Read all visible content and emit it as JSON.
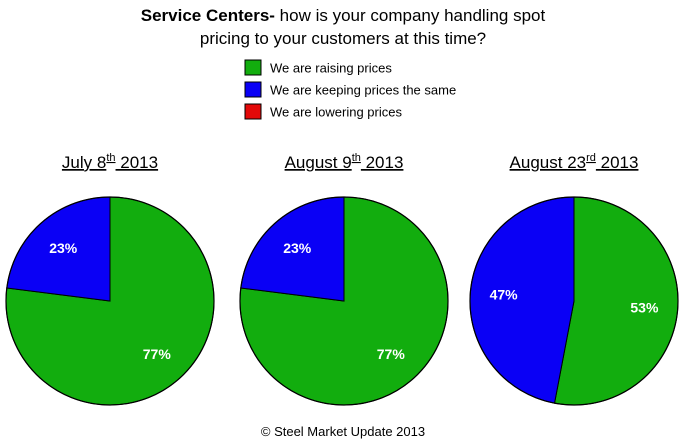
{
  "title": {
    "bold": "Service Centers-",
    "line1_rest": " how is your company handling  spot",
    "line2": "pricing to your customers at this time?"
  },
  "legend": [
    {
      "label": "We are raising prices",
      "color": "#12AD0E"
    },
    {
      "label": "We are keeping prices the same",
      "color": "#0A00F5"
    },
    {
      "label": "We are lowering prices",
      "color": "#E30909"
    }
  ],
  "footer": "© Steel Market Update 2013",
  "chart_data": [
    {
      "type": "pie",
      "title": {
        "pre": "July 8",
        "sup": "th",
        "post": " 2013"
      },
      "slices": [
        {
          "label": "We are raising prices",
          "value": 77,
          "display": "77%",
          "color": "#12AD0E"
        },
        {
          "label": "We are keeping prices the same",
          "value": 23,
          "display": "23%",
          "color": "#0A00F5"
        },
        {
          "label": "We are lowering prices",
          "value": 0,
          "display": "",
          "color": "#E30909"
        }
      ]
    },
    {
      "type": "pie",
      "title": {
        "pre": "August 9",
        "sup": "th",
        "post": " 2013"
      },
      "slices": [
        {
          "label": "We are raising prices",
          "value": 77,
          "display": "77%",
          "color": "#12AD0E"
        },
        {
          "label": "We are keeping prices the same",
          "value": 23,
          "display": "23%",
          "color": "#0A00F5"
        },
        {
          "label": "We are lowering prices",
          "value": 0,
          "display": "",
          "color": "#E30909"
        }
      ]
    },
    {
      "type": "pie",
      "title": {
        "pre": "August 23",
        "sup": "rd",
        "post": " 2013"
      },
      "slices": [
        {
          "label": "We are raising prices",
          "value": 53,
          "display": "53%",
          "color": "#12AD0E"
        },
        {
          "label": "We are keeping prices the same",
          "value": 47,
          "display": "47%",
          "color": "#0A00F5"
        },
        {
          "label": "We are lowering prices",
          "value": 0,
          "display": "",
          "color": "#E30909"
        }
      ]
    }
  ]
}
